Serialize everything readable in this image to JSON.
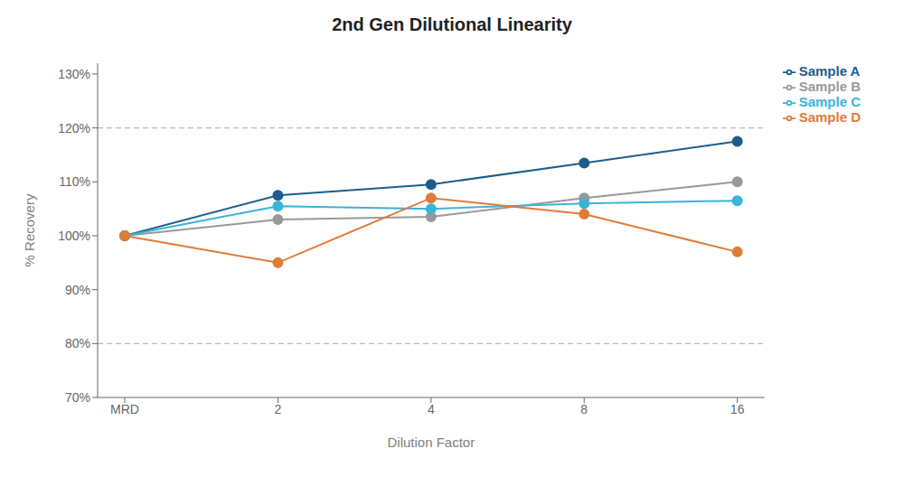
{
  "chart_data": {
    "type": "line",
    "title": "2nd Gen Dilutional Linearity",
    "x_label": "Dilution Factor",
    "y_label": "% Recovery",
    "categories": [
      "MRD",
      "2",
      "4",
      "8",
      "16"
    ],
    "series": [
      {
        "name": "Sample A",
        "color": "#1b5e8c",
        "values": [
          100,
          107.5,
          109.5,
          113.5,
          117.5
        ]
      },
      {
        "name": "Sample B",
        "color": "#999999",
        "values": [
          100,
          103,
          103.5,
          107,
          110
        ]
      },
      {
        "name": "Sample C",
        "color": "#3ab4d8",
        "values": [
          100,
          105.5,
          105,
          106,
          106.5
        ]
      },
      {
        "name": "Sample D",
        "color": "#e07b39",
        "values": [
          100,
          95,
          107,
          104,
          97
        ]
      }
    ],
    "ylim": [
      70,
      132
    ],
    "yticks": [
      {
        "value": 70,
        "label": "70%"
      },
      {
        "value": 80,
        "label": "80%"
      },
      {
        "value": 90,
        "label": "90%"
      },
      {
        "value": 100,
        "label": "100%"
      },
      {
        "value": 110,
        "label": "110%"
      },
      {
        "value": 120,
        "label": "120%"
      },
      {
        "value": 130,
        "label": "130%"
      }
    ],
    "reference_lines": [
      80,
      120
    ],
    "grid": false,
    "legend": "right",
    "marker": "circle"
  }
}
